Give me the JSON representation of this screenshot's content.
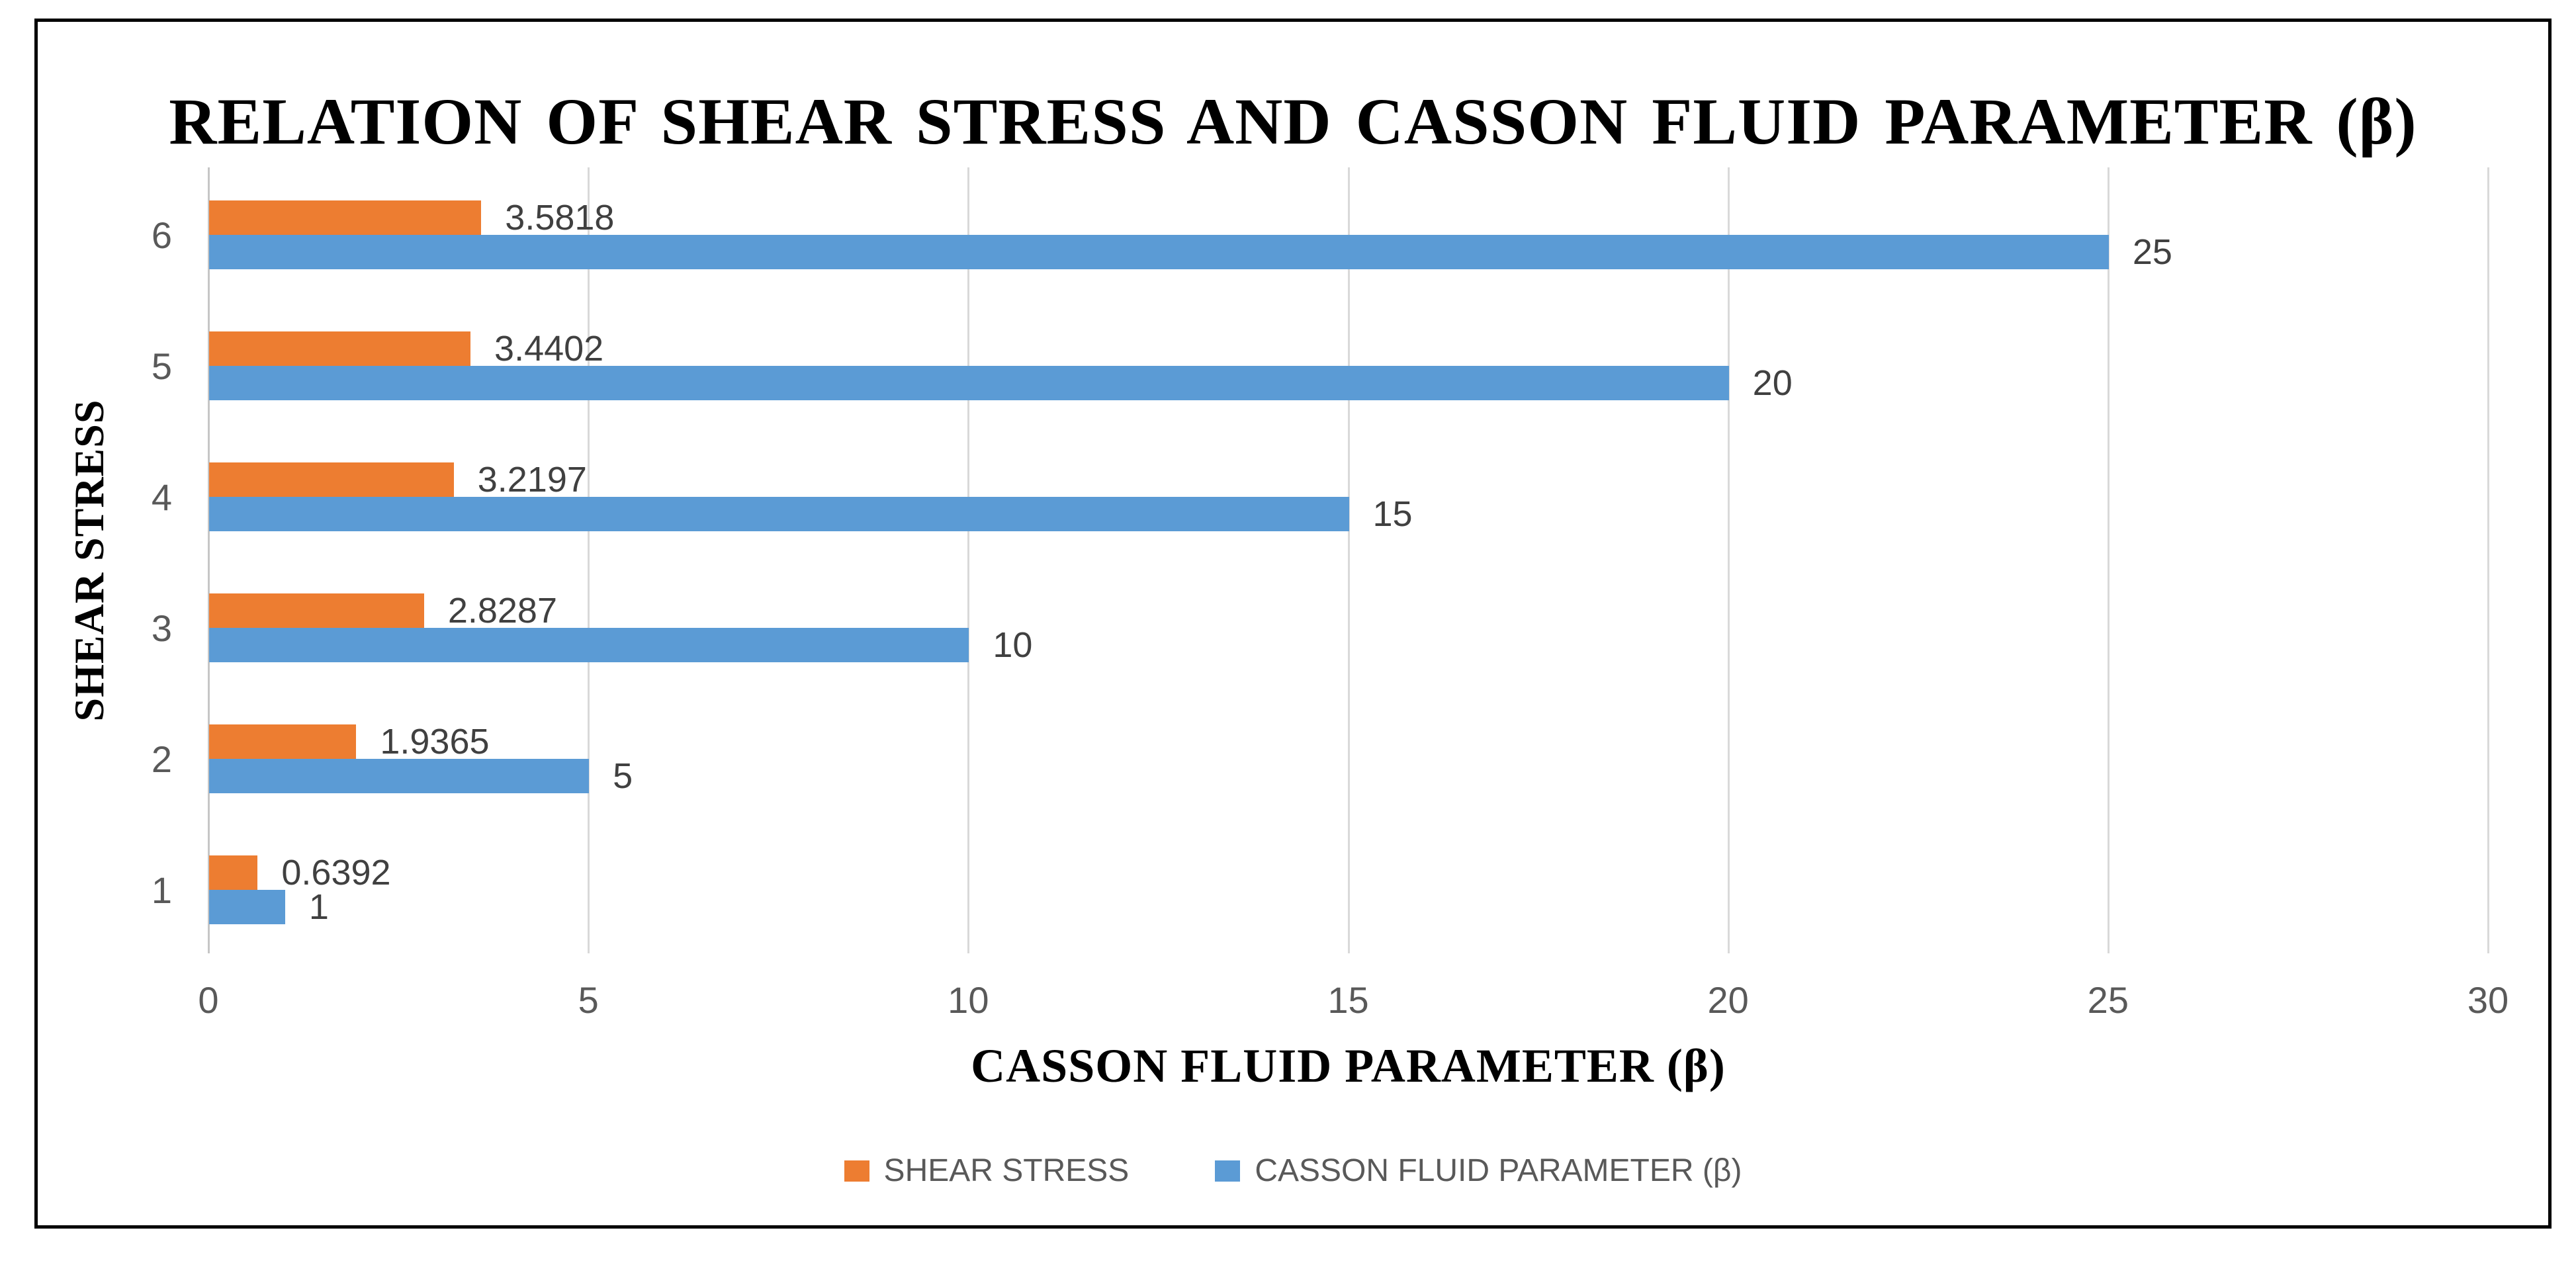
{
  "chart_data": {
    "type": "bar",
    "orientation": "horizontal",
    "title": "RELATION OF SHEAR STRESS AND CASSON FLUID PARAMETER (β)",
    "xlabel": "CASSON FLUID PARAMETER (β)",
    "ylabel": "SHEAR STRESS",
    "categories": [
      "6",
      "5",
      "4",
      "3",
      "2",
      "1"
    ],
    "series": [
      {
        "name": "SHEAR STRESS",
        "color": "#ED7D31",
        "values": [
          3.5818,
          3.4402,
          3.2197,
          2.8287,
          1.9365,
          0.6392
        ],
        "labels": [
          "3.5818",
          "3.4402",
          "3.2197",
          "2.8287",
          "1.9365",
          "0.6392"
        ]
      },
      {
        "name": "CASSON FLUID PARAMETER (β)",
        "color": "#5B9BD5",
        "values": [
          25,
          20,
          15,
          10,
          5,
          1
        ],
        "labels": [
          "25",
          "20",
          "15",
          "10",
          "5",
          "1"
        ]
      }
    ],
    "xlim": [
      0,
      30
    ],
    "xticks": [
      "0",
      "5",
      "10",
      "15",
      "20",
      "25",
      "30"
    ],
    "grid": true,
    "legend_position": "bottom",
    "colors": {
      "gridline": "#D9D9D9",
      "axis_line": "#C6C6C6",
      "tick_text": "#595959",
      "data_label_text": "#404040",
      "title_text": "#000000",
      "frame_border": "#000000",
      "background": "#FFFFFF"
    }
  }
}
